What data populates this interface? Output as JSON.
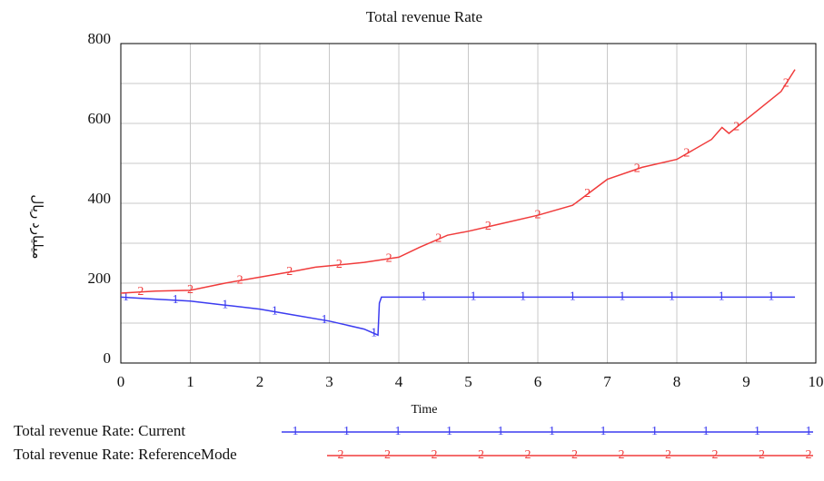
{
  "chart_data": {
    "type": "line",
    "title": "Total revenue Rate",
    "x_label": "Time",
    "y_label": "میلیارد ریال",
    "xlim": [
      0,
      10
    ],
    "xticks": [
      0,
      1,
      2,
      3,
      4,
      5,
      6,
      7,
      8,
      9,
      10
    ],
    "ylim": [
      0,
      800
    ],
    "yticks": [
      0,
      200,
      400,
      600,
      800
    ],
    "grid": true,
    "series": [
      {
        "name": "Total revenue Rate: Current",
        "marker": "1",
        "color": "#3b3bf0",
        "x": [
          0,
          0.5,
          1,
          1.5,
          2,
          2.5,
          3,
          3.5,
          3.7,
          3.72,
          3.75,
          9.7
        ],
        "values": [
          165,
          160,
          155,
          145,
          135,
          120,
          105,
          85,
          70,
          150,
          165,
          165
        ]
      },
      {
        "name": "Total revenue Rate: ReferenceMode",
        "marker": "2",
        "color": "#f03b3b",
        "x": [
          0,
          0.5,
          1,
          1.5,
          2,
          2.5,
          2.8,
          3.5,
          4,
          4.3,
          4.7,
          5,
          5.5,
          6,
          6.5,
          7,
          7.5,
          8,
          8.5,
          8.65,
          8.75,
          9,
          9.5,
          9.7
        ],
        "values": [
          175,
          180,
          182,
          200,
          215,
          230,
          240,
          252,
          265,
          290,
          320,
          330,
          350,
          370,
          395,
          460,
          490,
          510,
          560,
          590,
          575,
          610,
          680,
          735
        ]
      }
    ]
  }
}
